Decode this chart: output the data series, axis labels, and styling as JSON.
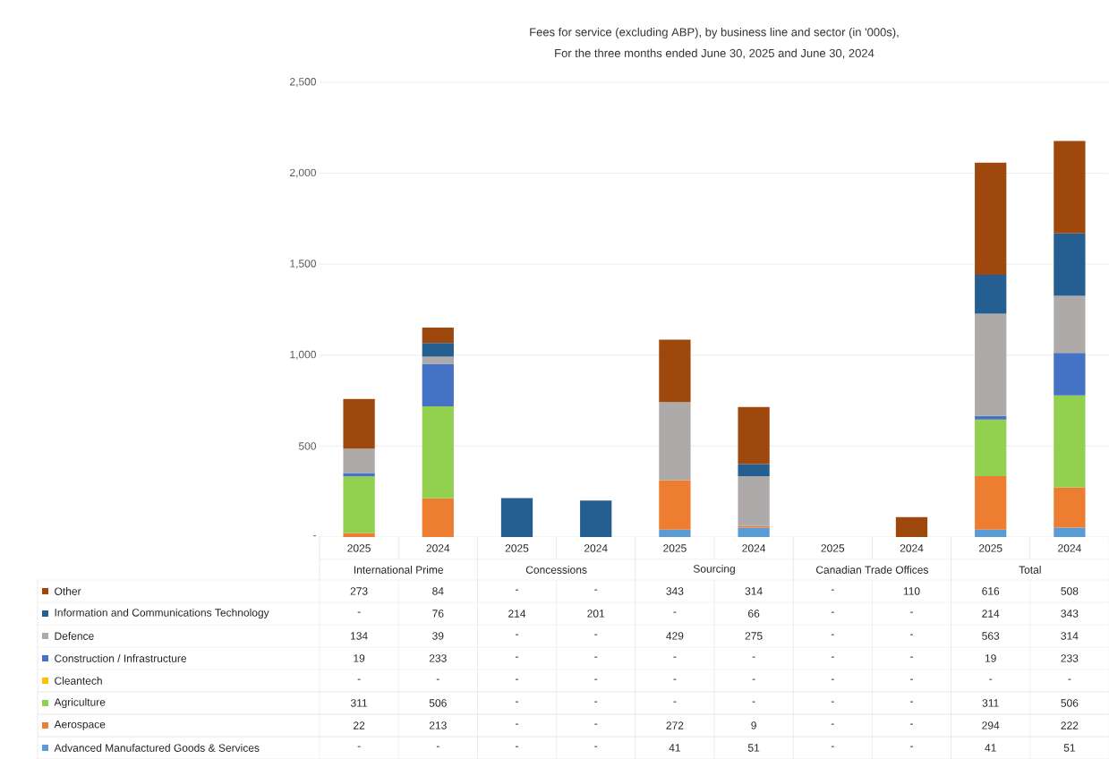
{
  "chart_data": {
    "type": "bar",
    "stacked": true,
    "title": "Fees for service (excluding ABP), by business line and sector (in '000s),",
    "subtitle": "For the three months ended June 30, 2025 and June 30, 2024",
    "categories": [
      "2025",
      "2024",
      "2025",
      "2024",
      "2025",
      "2024",
      "2025",
      "2024",
      "2025",
      "2024"
    ],
    "annotations": [
      "International Prime",
      "Concessions",
      "Sourcing",
      "Canadian Trade Offices",
      "Total"
    ],
    "ylim": [
      0,
      2500
    ],
    "yticks": [
      {
        "value": 0,
        "label": "-"
      },
      500,
      {
        "value": 1000,
        "label": "1,000"
      },
      {
        "value": 1500,
        "label": "1,500"
      },
      {
        "value": 2000,
        "label": "2,000"
      },
      {
        "value": 2500,
        "label": "2,500"
      }
    ],
    "grid": "y",
    "legend": "bottom",
    "series": [
      {
        "name": "Advanced Manufactured Goods & Services",
        "color": "#5b9bd5",
        "values": [
          null,
          null,
          null,
          null,
          41,
          51,
          null,
          null,
          41,
          51
        ],
        "value_labels": [
          "-",
          "-",
          "-",
          "-",
          "41",
          "51",
          "-",
          "-",
          "41",
          "51"
        ]
      },
      {
        "name": "Aerospace",
        "color": "#ed7d31",
        "values": [
          22,
          213,
          null,
          null,
          272,
          9,
          null,
          null,
          294,
          222
        ],
        "value_labels": [
          "22",
          "213",
          "-",
          "-",
          "272",
          "9",
          "-",
          "-",
          "294",
          "222"
        ]
      },
      {
        "name": "Agriculture",
        "color": "#92d050",
        "values": [
          311,
          506,
          null,
          null,
          null,
          null,
          null,
          null,
          311,
          506
        ],
        "value_labels": [
          "311",
          "506",
          "-",
          "-",
          "-",
          "-",
          "-",
          "-",
          "311",
          "506"
        ]
      },
      {
        "name": "Cleantech",
        "color": "#ffc000",
        "values": [
          null,
          null,
          null,
          null,
          null,
          null,
          null,
          null,
          null,
          null
        ],
        "value_labels": [
          "-",
          "-",
          "-",
          "-",
          "-",
          "-",
          "-",
          "-",
          "-",
          "-"
        ]
      },
      {
        "name": "Construction / Infrastructure",
        "color": "#4472c4",
        "values": [
          19,
          233,
          null,
          null,
          null,
          null,
          null,
          null,
          19,
          233
        ],
        "value_labels": [
          "19",
          "233",
          "-",
          "-",
          "-",
          "-",
          "-",
          "-",
          "19",
          "233"
        ]
      },
      {
        "name": "Defence",
        "color": "#aeaaaa",
        "values": [
          134,
          39,
          null,
          null,
          429,
          275,
          null,
          null,
          563,
          314
        ],
        "value_labels": [
          "134",
          "39",
          "-",
          "-",
          "429",
          "275",
          "-",
          "-",
          "563",
          "314"
        ]
      },
      {
        "name": "Information and Communications Technology",
        "color": "#255e91",
        "values": [
          null,
          76,
          214,
          201,
          null,
          66,
          null,
          null,
          214,
          343
        ],
        "value_labels": [
          "-",
          "76",
          "214",
          "201",
          "-",
          "66",
          "-",
          "-",
          "214",
          "343"
        ]
      },
      {
        "name": "Other",
        "color": "#9e480e",
        "values": [
          273,
          84,
          null,
          null,
          343,
          314,
          null,
          110,
          616,
          508
        ],
        "value_labels": [
          "273",
          "84",
          "-",
          "-",
          "343",
          "314",
          "-",
          "110",
          "616",
          "508"
        ]
      }
    ]
  }
}
